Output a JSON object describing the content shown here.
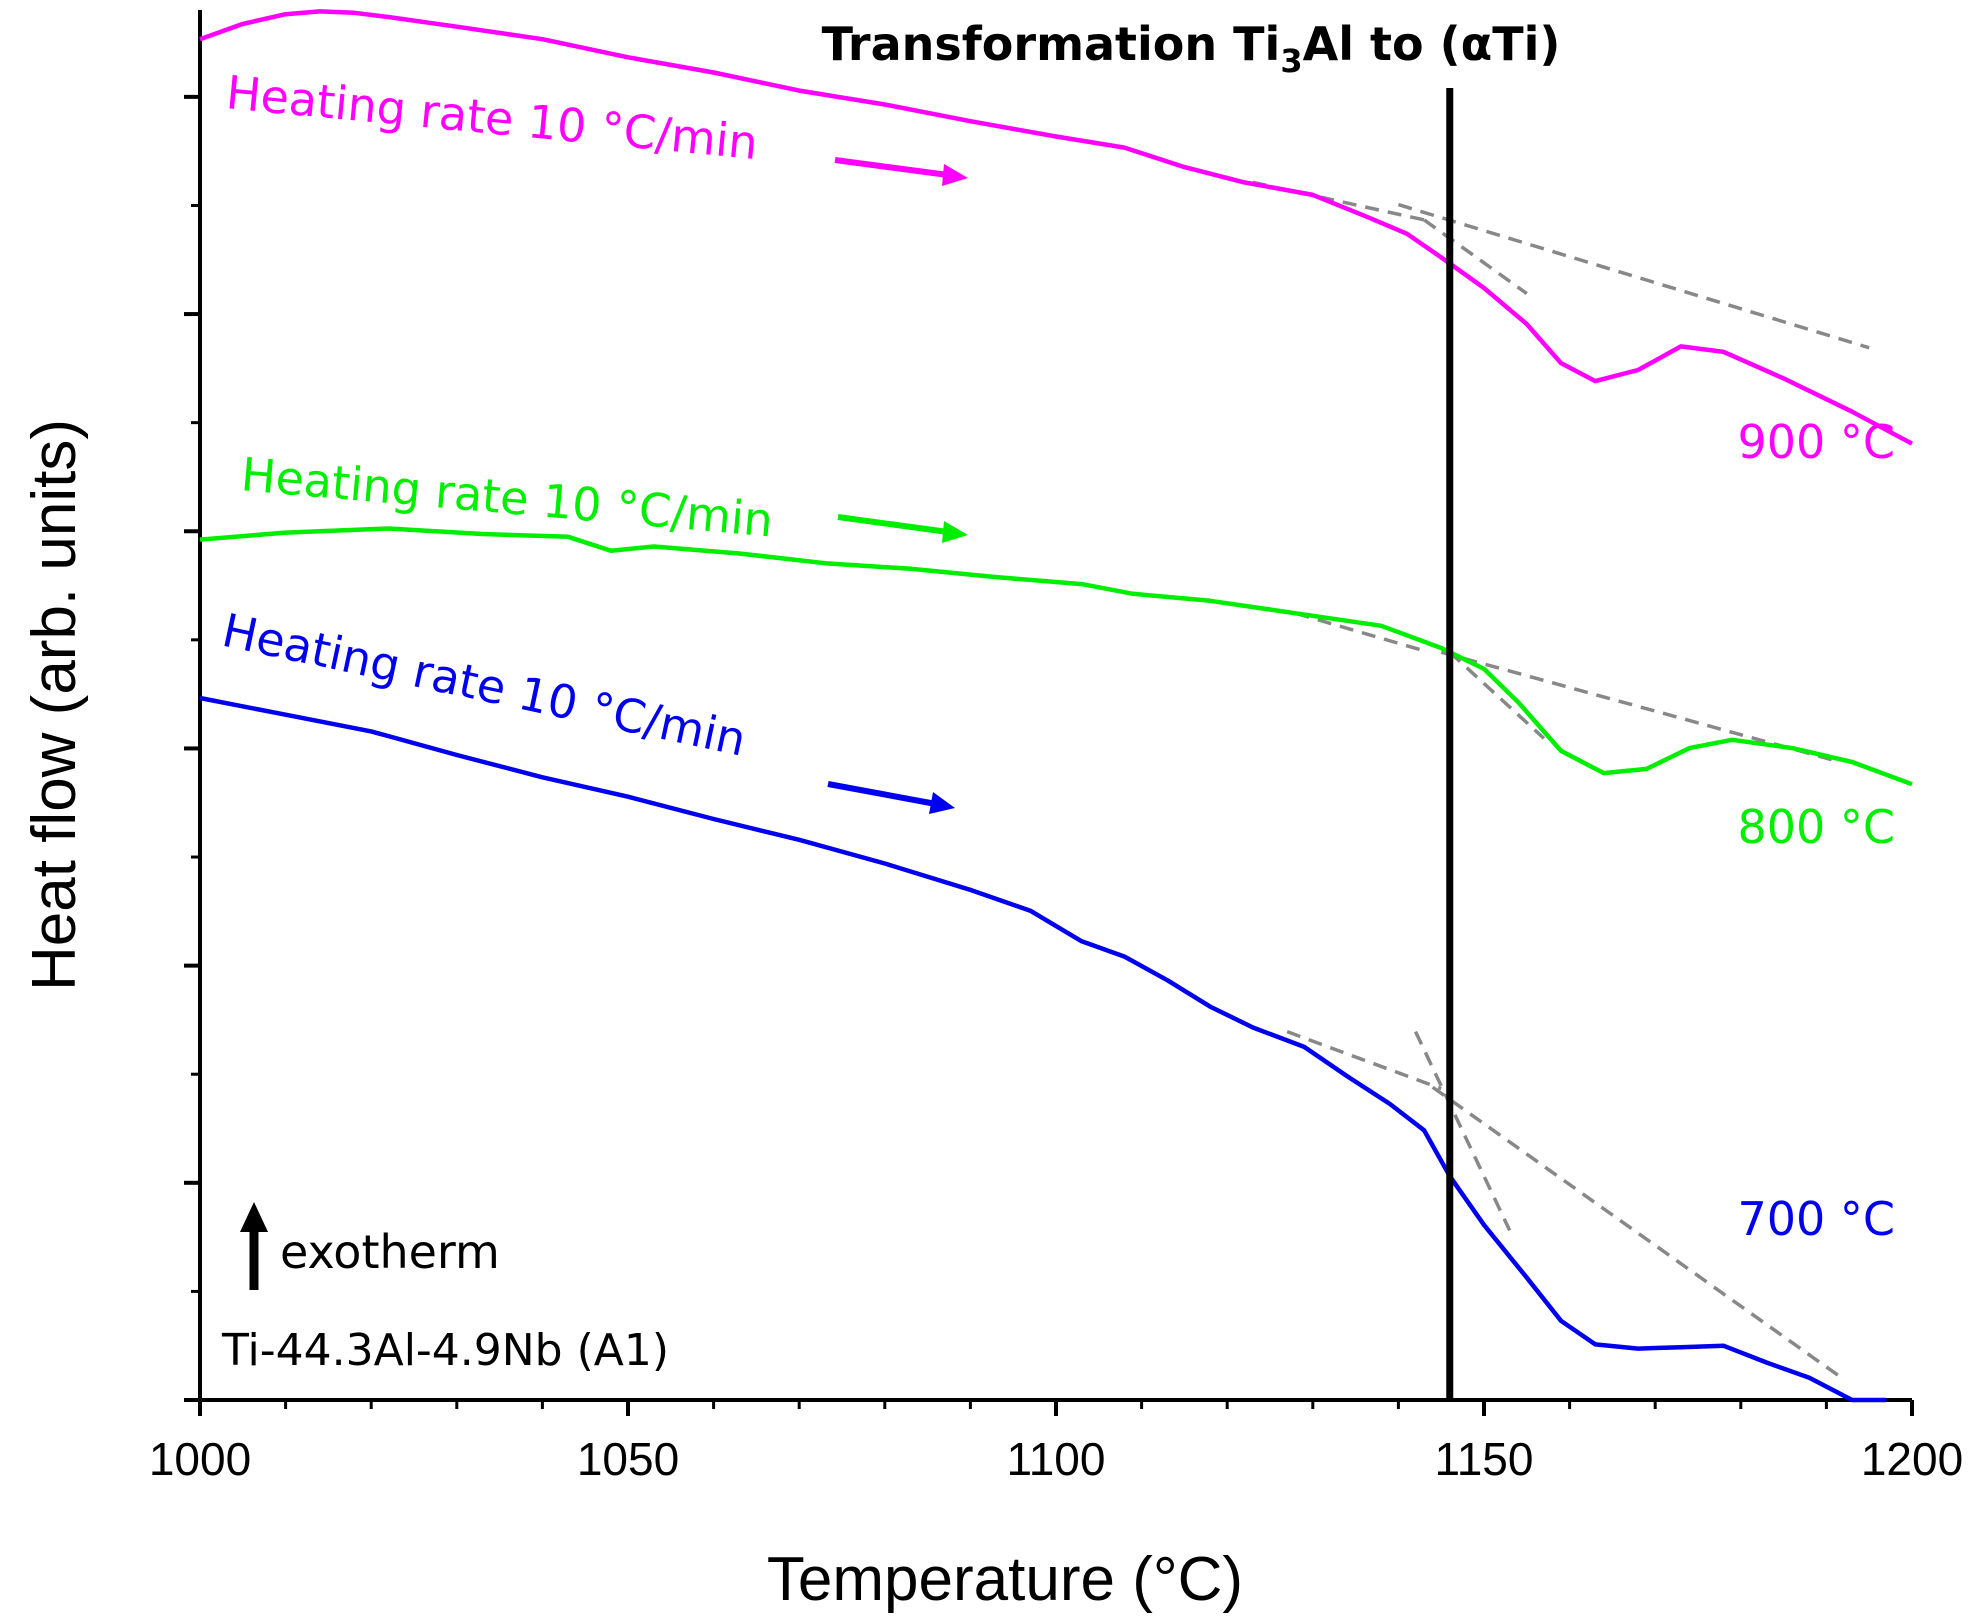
{
  "chart_data": {
    "type": "line",
    "title": "",
    "xlabel": "Temperature (°C)",
    "ylabel": "Heat flow (arb. units)",
    "xlim": [
      1000,
      1200
    ],
    "ylim": [
      0,
      1000
    ],
    "x_ticks": [
      "1000",
      "1050",
      "1100",
      "1150",
      "1200"
    ],
    "x_tick_values": [
      1000,
      1050,
      1100,
      1150,
      1200
    ],
    "y_ticklabels_shown": false,
    "grid": false,
    "series": [
      {
        "name": "900 °C",
        "label": "900 °C",
        "color": "#ff00ff",
        "rate_label": "Heating rate 10 °C/min",
        "x": [
          1000,
          1005,
          1010,
          1014,
          1018,
          1022,
          1030,
          1040,
          1050,
          1060,
          1070,
          1080,
          1090,
          1100,
          1108,
          1115,
          1122,
          1130,
          1136,
          1141,
          1145,
          1150,
          1155,
          1159,
          1163,
          1168,
          1173,
          1178,
          1185,
          1193,
          1200
        ],
        "y": [
          979,
          990,
          997,
          999,
          998,
          995,
          988,
          979,
          966,
          955,
          942,
          932,
          920,
          909,
          901,
          887,
          876,
          867,
          852,
          839,
          822,
          800,
          774,
          746,
          733,
          741,
          758,
          754,
          735,
          711,
          688
        ]
      },
      {
        "name": "800 °C",
        "label": "800 °C",
        "color": "#00ee00",
        "rate_label": "Heating rate 10 °C/min",
        "x": [
          1000,
          1010,
          1022,
          1033,
          1043,
          1048,
          1053,
          1063,
          1073,
          1083,
          1093,
          1103,
          1109,
          1118,
          1128,
          1138,
          1145,
          1150,
          1154,
          1159,
          1164,
          1169,
          1174,
          1179,
          1186,
          1193,
          1200
        ],
        "y": [
          619,
          624,
          627,
          623,
          621,
          611,
          614,
          609,
          602,
          598,
          592,
          587,
          580,
          575,
          566,
          557,
          541,
          526,
          502,
          467,
          451,
          454,
          469,
          475,
          469,
          459,
          443
        ]
      },
      {
        "name": "700 °C",
        "label": "700 °C",
        "color": "#0000ee",
        "rate_label": "Heating rate 10 °C/min",
        "x": [
          1000,
          1010,
          1020,
          1030,
          1040,
          1050,
          1060,
          1070,
          1080,
          1090,
          1097,
          1103,
          1108,
          1113,
          1118,
          1123,
          1129,
          1134,
          1139,
          1143,
          1146,
          1150,
          1155,
          1159,
          1163,
          1168,
          1173,
          1178,
          1183,
          1188,
          1193,
          1197
        ],
        "y": [
          505,
          493,
          481,
          464,
          448,
          434,
          418,
          403,
          386,
          367,
          352,
          330,
          319,
          302,
          283,
          268,
          254,
          233,
          213,
          194,
          161,
          126,
          88,
          57,
          40,
          37,
          38,
          39,
          27,
          16,
          0,
          0
        ]
      }
    ],
    "tangent_lines": [
      {
        "series": "900 °C",
        "x": [
          1123,
          1143
        ],
        "y": [
          876,
          849
        ]
      },
      {
        "series": "900 °C",
        "x": [
          1140,
          1195
        ],
        "y": [
          860,
          757
        ]
      },
      {
        "series": "900 °C",
        "x": [
          1143,
          1155
        ],
        "y": [
          849,
          796
        ]
      },
      {
        "series": "800 °C",
        "x": [
          1128,
          1143
        ],
        "y": [
          566,
          539
        ]
      },
      {
        "series": "800 °C",
        "x": [
          1145,
          1191
        ],
        "y": [
          538,
          460
        ]
      },
      {
        "series": "800 °C",
        "x": [
          1146,
          1157
        ],
        "y": [
          538,
          476
        ]
      },
      {
        "series": "700 °C",
        "x": [
          1127,
          1145
        ],
        "y": [
          265,
          224
        ]
      },
      {
        "series": "700 °C",
        "x": [
          1144,
          1192
        ],
        "y": [
          225,
          15
        ]
      },
      {
        "series": "700 °C",
        "x": [
          1142,
          1153
        ],
        "y": [
          265,
          122
        ]
      }
    ],
    "vertical_line": {
      "x": 1146,
      "label_prefix": "Transformation Ti",
      "label_sub": "3",
      "label_suffix": "Al to (αTi)"
    },
    "annotations": {
      "exotherm": "exotherm",
      "alloy": "Ti-44.3Al-4.9Nb (A1)"
    }
  }
}
